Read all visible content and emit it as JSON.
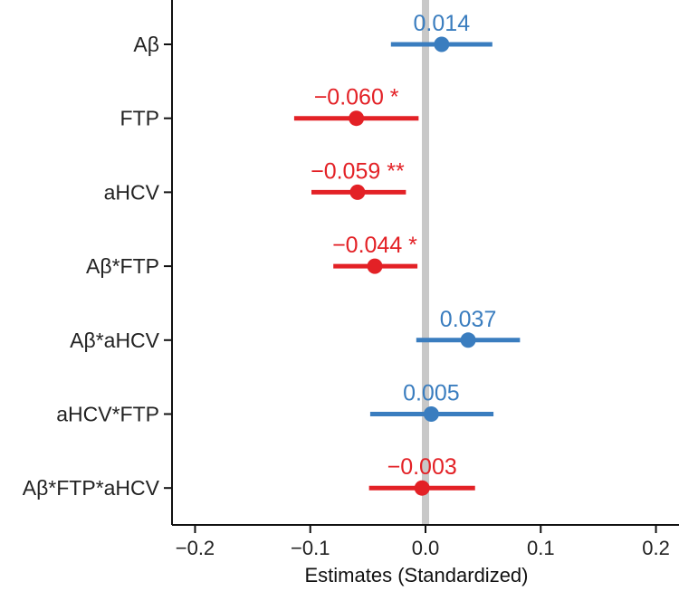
{
  "chart_data": {
    "type": "forest",
    "title": "",
    "xlabel": "Estimates (Standardized)",
    "ylabel": "",
    "xlim": [
      -0.22,
      0.22
    ],
    "x_ticks": [
      -0.2,
      -0.1,
      0.0,
      0.1,
      0.2
    ],
    "x_tick_labels": [
      "−0.2",
      "−0.1",
      "0.0",
      "0.1",
      "0.2"
    ],
    "reference_line": 0.0,
    "grid": false,
    "colors": {
      "positive": "#3a7dbf",
      "negative": "#e32126",
      "reference": "#c8c8c8"
    },
    "rows": [
      {
        "label": "Aβ",
        "estimate": 0.014,
        "lower": -0.03,
        "upper": 0.058,
        "value_label": "0.014",
        "color": "#3a7dbf"
      },
      {
        "label": "FTP",
        "estimate": -0.06,
        "lower": -0.114,
        "upper": -0.006,
        "value_label": "−0.060 *",
        "color": "#e32126"
      },
      {
        "label": "aHCV",
        "estimate": -0.059,
        "lower": -0.099,
        "upper": -0.017,
        "value_label": "−0.059 **",
        "color": "#e32126"
      },
      {
        "label": "Aβ*FTP",
        "estimate": -0.044,
        "lower": -0.08,
        "upper": -0.007,
        "value_label": "−0.044 *",
        "color": "#e32126"
      },
      {
        "label": "Aβ*aHCV",
        "estimate": 0.037,
        "lower": -0.008,
        "upper": 0.082,
        "value_label": "0.037",
        "color": "#3a7dbf"
      },
      {
        "label": "aHCV*FTP",
        "estimate": 0.005,
        "lower": -0.048,
        "upper": 0.059,
        "value_label": "0.005",
        "color": "#3a7dbf"
      },
      {
        "label": "Aβ*FTP*aHCV",
        "estimate": -0.003,
        "lower": -0.049,
        "upper": 0.043,
        "value_label": "−0.003",
        "color": "#e32126"
      }
    ]
  }
}
